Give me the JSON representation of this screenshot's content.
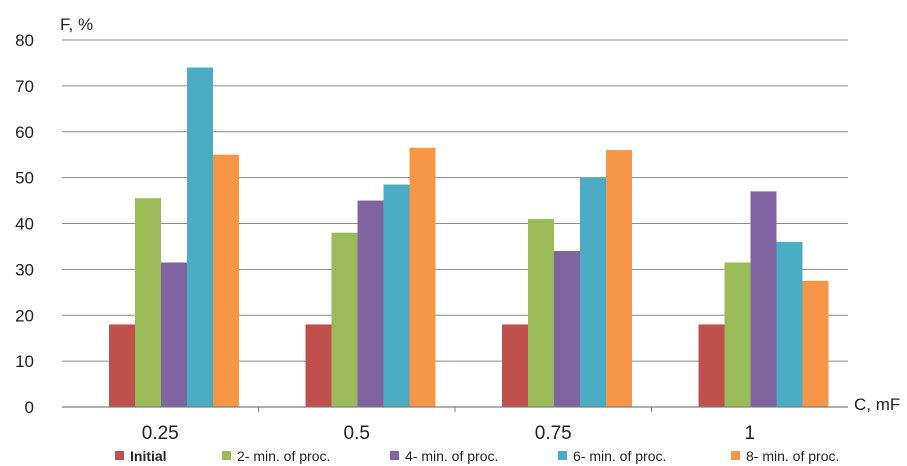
{
  "chart_data": {
    "type": "bar",
    "title": "",
    "ylabel": "F, %",
    "xlabel": "C, mF",
    "ylim": [
      0,
      80
    ],
    "yticks": [
      0,
      10,
      20,
      30,
      40,
      50,
      60,
      70,
      80
    ],
    "grid": "horizontal",
    "legend_position": "bottom",
    "categories": [
      "0.25",
      "0.5",
      "0.75",
      "1"
    ],
    "series": [
      {
        "name": "Initial",
        "color": "#c0504d",
        "values": [
          18,
          18,
          18,
          18
        ]
      },
      {
        "name": "2- min. of proc.",
        "color": "#9bbb59",
        "values": [
          45.5,
          38,
          41,
          31.5
        ]
      },
      {
        "name": "4- min. of proc.",
        "color": "#8064a2",
        "values": [
          31.5,
          45,
          34,
          47
        ]
      },
      {
        "name": "6- min. of proc.",
        "color": "#4bacc6",
        "values": [
          74,
          48.5,
          50,
          36
        ]
      },
      {
        "name": "8- min. of proc.",
        "color": "#f79646",
        "values": [
          55,
          56.5,
          56,
          27.5
        ]
      }
    ]
  }
}
